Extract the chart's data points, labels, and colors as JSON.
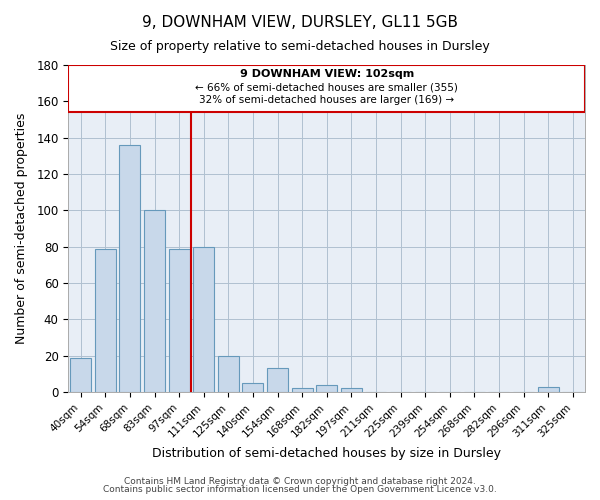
{
  "title": "9, DOWNHAM VIEW, DURSLEY, GL11 5GB",
  "subtitle": "Size of property relative to semi-detached houses in Dursley",
  "xlabel": "Distribution of semi-detached houses by size in Dursley",
  "ylabel": "Number of semi-detached properties",
  "categories": [
    "40sqm",
    "54sqm",
    "68sqm",
    "83sqm",
    "97sqm",
    "111sqm",
    "125sqm",
    "140sqm",
    "154sqm",
    "168sqm",
    "182sqm",
    "197sqm",
    "211sqm",
    "225sqm",
    "239sqm",
    "254sqm",
    "268sqm",
    "282sqm",
    "296sqm",
    "311sqm",
    "325sqm"
  ],
  "values": [
    19,
    79,
    136,
    100,
    79,
    80,
    20,
    5,
    13,
    2,
    4,
    2,
    0,
    0,
    0,
    0,
    0,
    0,
    0,
    3,
    0
  ],
  "bar_color": "#c8d8ea",
  "bar_edge_color": "#6699bb",
  "grid_color": "#b0c0d0",
  "bg_color": "#e8eef6",
  "marker_color": "#cc0000",
  "annotation_line1": "9 DOWNHAM VIEW: 102sqm",
  "annotation_line2": "← 66% of semi-detached houses are smaller (355)",
  "annotation_line3": "32% of semi-detached houses are larger (169) →",
  "ylim": [
    0,
    180
  ],
  "footnote1": "Contains HM Land Registry data © Crown copyright and database right 2024.",
  "footnote2": "Contains public sector information licensed under the Open Government Licence v3.0."
}
